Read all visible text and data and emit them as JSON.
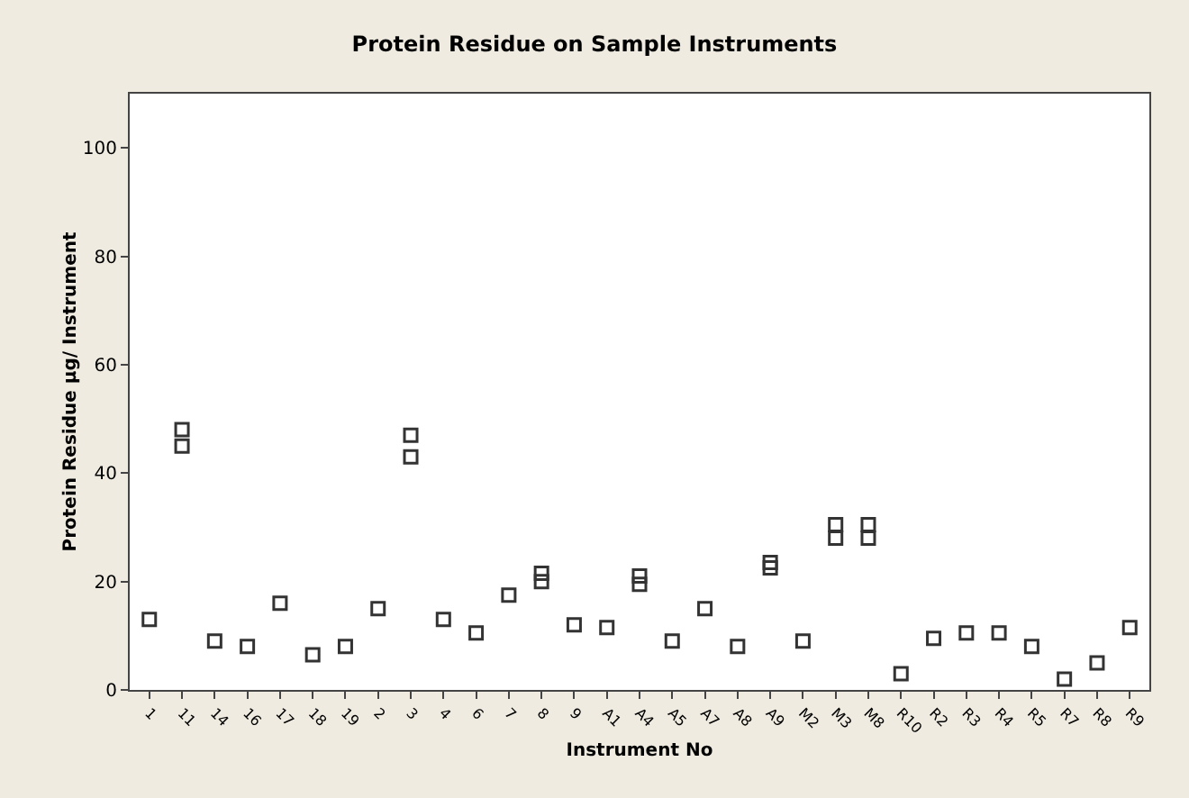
{
  "chart_data": {
    "type": "scatter",
    "title": "Protein Residue on Sample Instruments",
    "xlabel": "Instrument No",
    "ylabel": "Protein Residue µg/ Instrument",
    "categories": [
      "1",
      "11",
      "14",
      "16",
      "17",
      "18",
      "19",
      "2",
      "3",
      "4",
      "6",
      "7",
      "8",
      "9",
      "A1",
      "A4",
      "A5",
      "A7",
      "A8",
      "A9",
      "M2",
      "M3",
      "M8",
      "R10",
      "R2",
      "R3",
      "R4",
      "R5",
      "R7",
      "R8",
      "R9"
    ],
    "series": [
      {
        "color": "#333333",
        "x": [
          "1",
          "11",
          "11",
          "14",
          "16",
          "17",
          "18",
          "19",
          "2",
          "3",
          "3",
          "4",
          "6",
          "7",
          "8",
          "8",
          "9",
          "A1",
          "A4",
          "A4",
          "A5",
          "A7",
          "A8",
          "A9",
          "A9",
          "M2",
          "M3",
          "M3",
          "M8",
          "M8",
          "R10",
          "R2",
          "R3",
          "R4",
          "R5",
          "R7",
          "R8",
          "R9"
        ],
        "values": [
          13,
          45,
          48,
          9,
          8,
          16,
          6.5,
          8,
          15,
          43,
          47,
          13,
          10.5,
          17.5,
          20,
          21.5,
          12,
          11.5,
          19.5,
          21,
          9,
          15,
          8,
          22.5,
          23.5,
          9,
          28,
          30.5,
          28,
          30.5,
          3,
          9.5,
          10.5,
          10.5,
          8,
          2,
          5,
          11.5
        ]
      }
    ],
    "ylim": [
      0,
      110
    ],
    "yticks": [
      0,
      20,
      40,
      60,
      80,
      100
    ],
    "grid": false,
    "marker": "square"
  }
}
